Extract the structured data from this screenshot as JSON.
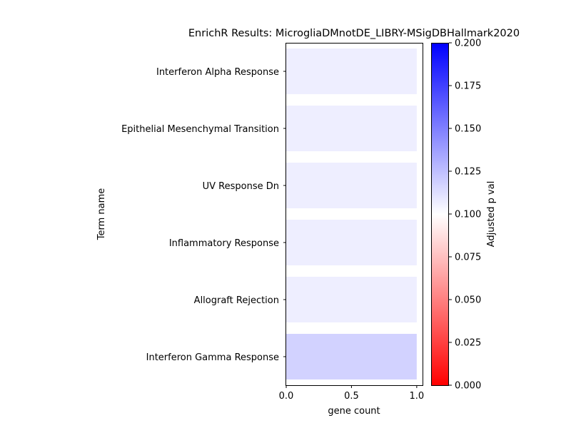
{
  "chart_data": {
    "type": "bar",
    "orientation": "horizontal",
    "title": "EnrichR Results: MicrogliaDMnotDE_LIBRY-MSigDBHallmark2020",
    "xlabel": "gene count",
    "ylabel": "Term name",
    "xlim": [
      0,
      1.05
    ],
    "xticks": [
      "0.0",
      "0.5",
      "1.0"
    ],
    "grid": false,
    "categories": [
      "Interferon Alpha Response",
      "Epithelial Mesenchymal Transition",
      "UV Response Dn",
      "Inflammatory Response",
      "Allograft Rejection",
      "Interferon Gamma Response"
    ],
    "values": [
      1,
      1,
      1,
      1,
      1,
      1
    ],
    "adjusted_p_values": [
      0.1065,
      0.1065,
      0.1065,
      0.1065,
      0.1065,
      0.1175
    ],
    "colorbar": {
      "label": "Adjusted p val",
      "range": [
        0.0,
        0.2
      ],
      "ticks": [
        "0.000",
        "0.025",
        "0.050",
        "0.075",
        "0.100",
        "0.125",
        "0.150",
        "0.175",
        "0.200"
      ],
      "colors": [
        "#ff0000",
        "#ffffff",
        "#0000ff"
      ]
    }
  }
}
